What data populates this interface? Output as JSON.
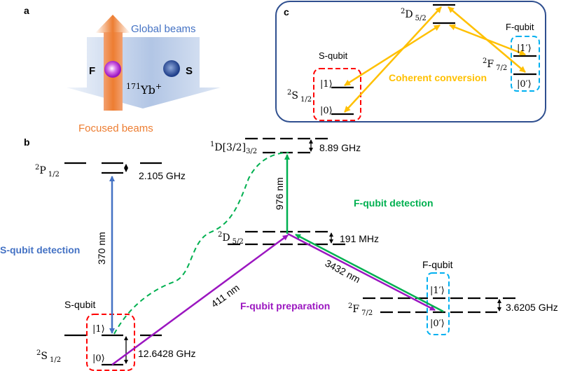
{
  "panel_a": {
    "label": "a",
    "global_beams": "Global beams",
    "focused_beams": "Focused beams",
    "ion": {
      "mass": "171",
      "element": "Yb",
      "charge": "+"
    },
    "f_label": "F",
    "s_label": "S"
  },
  "panel_b": {
    "label": "b",
    "p_level": {
      "term": "2",
      "letter": "P",
      "j": "1/2",
      "splitting": "2.105 GHz"
    },
    "s_level": {
      "term": "2",
      "letter": "S",
      "j": "1/2",
      "splitting": "12.6428 GHz",
      "ket1": "|1⟩",
      "ket0": "|0⟩"
    },
    "d_level": {
      "term": "2",
      "letter": "D",
      "j": "5/2",
      "splitting": "191 MHz"
    },
    "d1_level": {
      "term": "1",
      "letter": "D[3/2]",
      "j": "3/2",
      "splitting": "8.89 GHz"
    },
    "f_level": {
      "term": "2",
      "letter": "F",
      "j": "7/2",
      "splitting": "3.6205 GHz",
      "ket1": "|1′⟩",
      "ket0": "|0′⟩"
    },
    "s_qubit": "S-qubit",
    "f_qubit": "F-qubit",
    "s_detection": "S-qubit detection",
    "f_detection": "F-qubit detection",
    "f_preparation": "F-qubit preparation",
    "wl_370": "370 nm",
    "wl_411": "411 nm",
    "wl_976": "976 nm",
    "wl_3432": "3432 nm"
  },
  "panel_c": {
    "label": "c",
    "d_level": {
      "term": "2",
      "letter": "D",
      "j": "5/2"
    },
    "s_level": {
      "term": "2",
      "letter": "S",
      "j": "1/2",
      "ket1": "|1⟩",
      "ket0": "|0⟩"
    },
    "f_level": {
      "term": "2",
      "letter": "F",
      "j": "7/2",
      "ket1": "|1′⟩",
      "ket0": "|0′⟩"
    },
    "s_qubit": "S-qubit",
    "f_qubit": "F-qubit",
    "conversion": "Coherent conversion"
  },
  "colors": {
    "s_detection": "#4472c4",
    "f_detection": "#00b050",
    "f_preparation": "#9b16c0",
    "conversion": "#ffc000",
    "focused": "#ed7d31",
    "s_box": "#ff0000",
    "f_box": "#00b0f0",
    "frame": "#2f4f8f"
  }
}
